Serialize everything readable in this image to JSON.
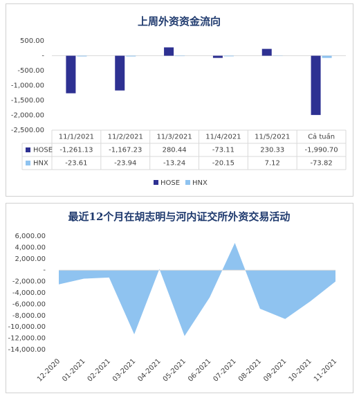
{
  "chart_data": [
    {
      "type": "bar",
      "title": "上周外资资金流向",
      "categories": [
        "11/1/2021",
        "11/2/2021",
        "11/3/2021",
        "11/4/2021",
        "11/5/2021",
        "Cả tuần"
      ],
      "series": [
        {
          "name": "HOSE",
          "color": "#2e3192",
          "values": [
            -1261.13,
            -1167.23,
            280.44,
            -73.11,
            230.33,
            -1990.7
          ],
          "value_labels": [
            "-1,261.13",
            "-1,167.23",
            "280.44",
            "-73.11",
            "230.33",
            "-1,990.70"
          ]
        },
        {
          "name": "HNX",
          "color": "#8fc3f0",
          "values": [
            -23.61,
            -23.94,
            -13.24,
            -20.15,
            7.12,
            -73.82
          ],
          "value_labels": [
            "-23.61",
            "-23.94",
            "-13.24",
            "-20.15",
            "7.12",
            "-73.82"
          ]
        }
      ],
      "ylim": [
        -2500,
        500
      ],
      "yticks": [
        {
          "value": 500,
          "label": "500.00"
        },
        {
          "value": 0,
          "label": "-"
        },
        {
          "value": -500,
          "label": "-500.00"
        },
        {
          "value": -1000,
          "label": "-1,000.00"
        },
        {
          "value": -1500,
          "label": "-1,500.00"
        },
        {
          "value": -2000,
          "label": "-2,000.00"
        },
        {
          "value": -2500,
          "label": "-2,500.00"
        }
      ],
      "legend": "bottom"
    },
    {
      "type": "area",
      "title": "最近12个月在胡志明与河内证交所外资交易活动",
      "categories": [
        "12-2020",
        "01-2021",
        "02-2021",
        "03-2021",
        "04-2021",
        "05-2021",
        "06-2021",
        "07-2021",
        "08-2021",
        "09-2021",
        "10-2021",
        "11-2021"
      ],
      "values": [
        -2500,
        -1500,
        -1300,
        -11300,
        200,
        -11600,
        -4800,
        4800,
        -6800,
        -8600,
        -5500,
        -2000
      ],
      "color": "#8fc3f0",
      "ylim": [
        -14000,
        6000
      ],
      "yticks": [
        {
          "value": 6000,
          "label": "6,000.00"
        },
        {
          "value": 4000,
          "label": "4,000.00"
        },
        {
          "value": 2000,
          "label": "2,000.00"
        },
        {
          "value": 0,
          "label": "-"
        },
        {
          "value": -2000,
          "label": "-2,000.00"
        },
        {
          "value": -4000,
          "label": "-4,000.00"
        },
        {
          "value": -6000,
          "label": "-6,000.00"
        },
        {
          "value": -8000,
          "label": "-8,000.00"
        },
        {
          "value": -10000,
          "label": "-10,000.00"
        },
        {
          "value": -12000,
          "label": "-12,000.00"
        },
        {
          "value": -14000,
          "label": "-14,000.00"
        }
      ]
    }
  ]
}
